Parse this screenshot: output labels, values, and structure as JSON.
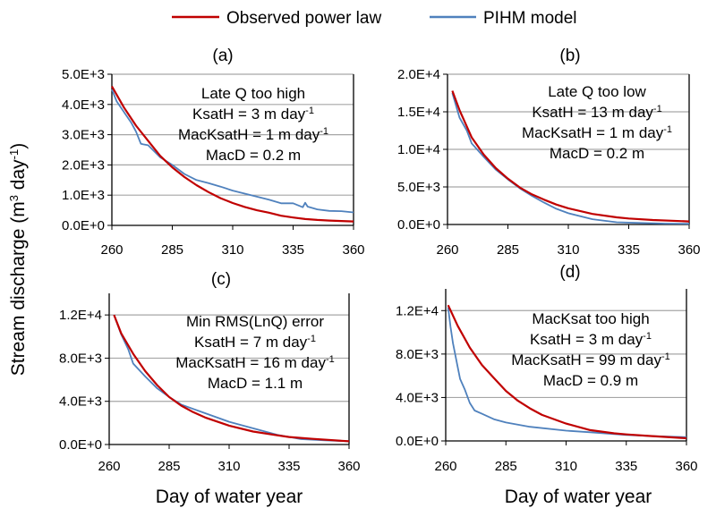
{
  "legend": {
    "placement": "top",
    "items": [
      {
        "label": "Observed power law",
        "color": "#c00000"
      },
      {
        "label": "PIHM model",
        "color": "#4f81bd"
      }
    ]
  },
  "ylabel_parts": [
    {
      "text": "Stream discharge (m"
    },
    {
      "sup": "3"
    },
    {
      "text": " day"
    },
    {
      "sup": "-1"
    },
    {
      "text": ")"
    }
  ],
  "xlabel": "Day of water year",
  "chart_data": [
    {
      "type": "line",
      "panel": "(a)",
      "grid": true,
      "xlim": [
        260,
        360
      ],
      "ylim": [
        0,
        5000
      ],
      "xticks": [
        260,
        285,
        310,
        335,
        360
      ],
      "xtick_labels": [
        "260",
        "285",
        "310",
        "335",
        "360"
      ],
      "yticks": [
        0,
        1000,
        2000,
        3000,
        4000,
        5000
      ],
      "ytick_labels": [
        "0.0E+0",
        "1.0E+3",
        "2.0E+3",
        "3.0E+3",
        "4.0E+3",
        "5.0E+3"
      ],
      "annotation": [
        {
          "text": "Late Q too high"
        },
        {
          "text": "KsatH = 3 m day",
          "sup": "-1"
        },
        {
          "text": "MacKsatH = 1 m day",
          "sup": "-1"
        },
        {
          "text": "MacD = 0.2 m"
        }
      ],
      "series": [
        {
          "name": "Observed power law",
          "x": [
            260,
            265,
            270,
            275,
            280,
            285,
            290,
            295,
            300,
            305,
            310,
            315,
            320,
            325,
            330,
            335,
            340,
            345,
            350,
            355,
            360
          ],
          "y": [
            4600,
            3900,
            3300,
            2800,
            2300,
            1920,
            1600,
            1330,
            1100,
            900,
            740,
            610,
            500,
            420,
            320,
            260,
            210,
            180,
            160,
            145,
            130
          ]
        },
        {
          "name": "PIHM model",
          "x": [
            260,
            262,
            265,
            268,
            270,
            272,
            273,
            275,
            280,
            285,
            290,
            295,
            300,
            305,
            310,
            315,
            320,
            325,
            330,
            335,
            339,
            340,
            341,
            345,
            350,
            355,
            360
          ],
          "y": [
            4500,
            4100,
            3750,
            3400,
            3100,
            2700,
            2680,
            2650,
            2250,
            2000,
            1700,
            1500,
            1400,
            1280,
            1150,
            1050,
            950,
            850,
            730,
            730,
            600,
            750,
            620,
            530,
            480,
            470,
            430
          ]
        }
      ]
    },
    {
      "type": "line",
      "panel": "(b)",
      "grid": true,
      "xlim": [
        260,
        360
      ],
      "ylim": [
        0,
        20000
      ],
      "xticks": [
        260,
        285,
        310,
        335,
        360
      ],
      "xtick_labels": [
        "260",
        "285",
        "310",
        "335",
        "360"
      ],
      "yticks": [
        0,
        5000,
        10000,
        15000,
        20000
      ],
      "ytick_labels": [
        "0.0E+0",
        "5.0E+3",
        "1.0E+4",
        "1.5E+4",
        "2.0E+4"
      ],
      "annotation": [
        {
          "text": "Late Q too low"
        },
        {
          "text": "KsatH = 13 m day",
          "sup": "-1"
        },
        {
          "text": "MacKsatH = 1 m day",
          "sup": "-1"
        },
        {
          "text": "MacD = 0.2 m"
        }
      ],
      "series": [
        {
          "name": "Observed power law",
          "x": [
            262,
            265,
            270,
            275,
            280,
            285,
            290,
            295,
            300,
            305,
            310,
            320,
            330,
            335,
            345,
            360
          ],
          "y": [
            17800,
            15200,
            11600,
            9300,
            7500,
            6100,
            4900,
            4000,
            3300,
            2650,
            2150,
            1400,
            950,
            800,
            600,
            400
          ]
        },
        {
          "name": "PIHM model",
          "x": [
            262,
            265,
            268,
            270,
            275,
            280,
            285,
            290,
            295,
            300,
            305,
            310,
            320,
            330,
            340,
            350,
            360
          ],
          "y": [
            17500,
            14200,
            12500,
            10800,
            9000,
            7300,
            6000,
            4800,
            3800,
            2900,
            2100,
            1500,
            700,
            300,
            200,
            120,
            100
          ]
        }
      ]
    },
    {
      "type": "line",
      "panel": "(c)",
      "grid": true,
      "xlim": [
        260,
        360
      ],
      "ylim": [
        0,
        14000
      ],
      "xticks": [
        260,
        285,
        310,
        335,
        360
      ],
      "xtick_labels": [
        "260",
        "285",
        "310",
        "335",
        "360"
      ],
      "yticks": [
        0,
        4000,
        8000,
        12000
      ],
      "ytick_labels": [
        "0.0E+0",
        "4.0E+3",
        "8.0E+3",
        "1.2E+4"
      ],
      "annotation": [
        {
          "text": "Min RMS(LnQ) error"
        },
        {
          "text": "KsatH = 7 m day",
          "sup": "-1"
        },
        {
          "text": "MacKsatH = 16 m day",
          "sup": "-1"
        },
        {
          "text": "MacD = 1.1 m"
        }
      ],
      "series": [
        {
          "name": "Observed power law",
          "x": [
            262,
            265,
            270,
            275,
            280,
            285,
            290,
            295,
            300,
            310,
            320,
            330,
            335,
            345,
            360
          ],
          "y": [
            12000,
            10300,
            8400,
            6800,
            5500,
            4400,
            3600,
            3000,
            2500,
            1750,
            1200,
            850,
            700,
            520,
            300
          ]
        },
        {
          "name": "PIHM model",
          "x": [
            262,
            265,
            268,
            270,
            275,
            280,
            285,
            290,
            295,
            300,
            310,
            320,
            330,
            340,
            350,
            360
          ],
          "y": [
            12000,
            10200,
            8800,
            7500,
            6300,
            5200,
            4400,
            3700,
            3300,
            2900,
            2100,
            1500,
            900,
            500,
            380,
            300
          ]
        }
      ]
    },
    {
      "type": "line",
      "panel": "(d)",
      "grid": true,
      "xlim": [
        260,
        360
      ],
      "ylim": [
        0,
        14000
      ],
      "xticks": [
        260,
        285,
        310,
        335,
        360
      ],
      "xtick_labels": [
        "260",
        "285",
        "310",
        "335",
        "360"
      ],
      "yticks": [
        0,
        4000,
        8000,
        12000
      ],
      "ytick_labels": [
        "0.0E+0",
        "4.0E+3",
        "8.0E+3",
        "1.2E+4"
      ],
      "annotation": [
        {
          "text": "MacKsat too high"
        },
        {
          "text": "KsatH = 3 m day",
          "sup": "-1"
        },
        {
          "text": "MacKsatH = 99 m day",
          "sup": "-1"
        },
        {
          "text": "MacD = 0.9 m"
        }
      ],
      "series": [
        {
          "name": "Observed power law",
          "x": [
            261,
            265,
            270,
            275,
            280,
            285,
            290,
            295,
            300,
            310,
            320,
            330,
            335,
            345,
            360
          ],
          "y": [
            12500,
            10600,
            8600,
            7000,
            5800,
            4600,
            3700,
            3000,
            2400,
            1600,
            1000,
            700,
            600,
            450,
            250
          ]
        },
        {
          "name": "PIHM model",
          "x": [
            261,
            262,
            263,
            265,
            266,
            268,
            270,
            272,
            275,
            280,
            285,
            295,
            310,
            320,
            335,
            345,
            360
          ],
          "y": [
            12300,
            10500,
            9000,
            6800,
            5700,
            4700,
            3500,
            2800,
            2500,
            2000,
            1700,
            1300,
            950,
            800,
            550,
            450,
            350
          ]
        }
      ]
    }
  ]
}
